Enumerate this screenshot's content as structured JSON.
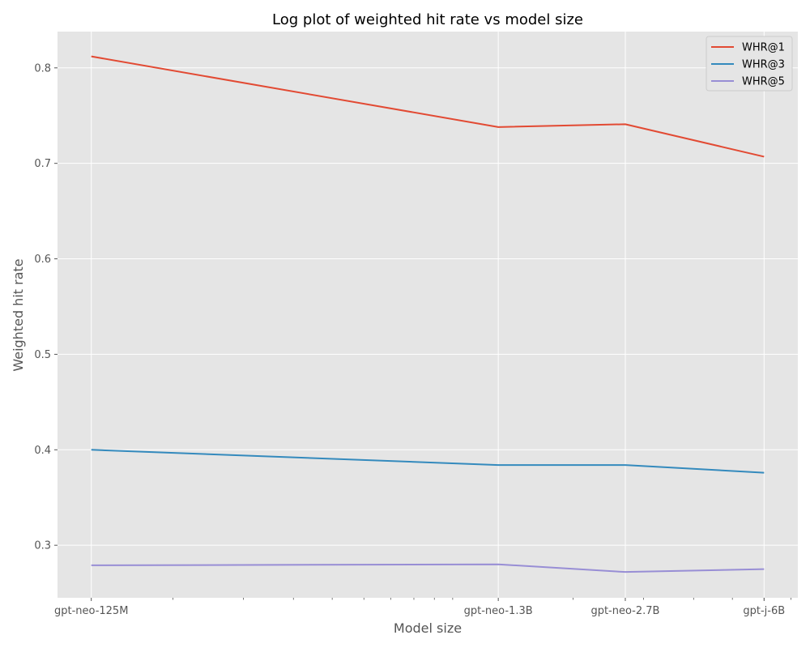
{
  "chart_data": {
    "type": "line",
    "title": "Log plot of weighted hit rate vs model size",
    "xlabel": "Model size",
    "ylabel": "Weighted hit rate",
    "xscale": "log",
    "x": [
      125000000,
      1300000000,
      2700000000,
      6000000000
    ],
    "xtick_labels": [
      "gpt-neo-125M",
      "gpt-neo-1.3B",
      "gpt-neo-2.7B",
      "gpt-j-6B"
    ],
    "ylim": [
      0.245,
      0.838
    ],
    "yticks": [
      0.3,
      0.4,
      0.5,
      0.6,
      0.7,
      0.8
    ],
    "ytick_labels": [
      "0.3",
      "0.4",
      "0.5",
      "0.6",
      "0.7",
      "0.8"
    ],
    "grid": true,
    "legend_position": "top-right",
    "series": [
      {
        "name": "WHR@1",
        "color": "#E24A33",
        "values": [
          0.812,
          0.738,
          0.741,
          0.707
        ]
      },
      {
        "name": "WHR@3",
        "color": "#348ABD",
        "values": [
          0.4,
          0.384,
          0.384,
          0.376
        ]
      },
      {
        "name": "WHR@5",
        "color": "#988ED5",
        "values": [
          0.279,
          0.28,
          0.272,
          0.275
        ]
      }
    ]
  }
}
